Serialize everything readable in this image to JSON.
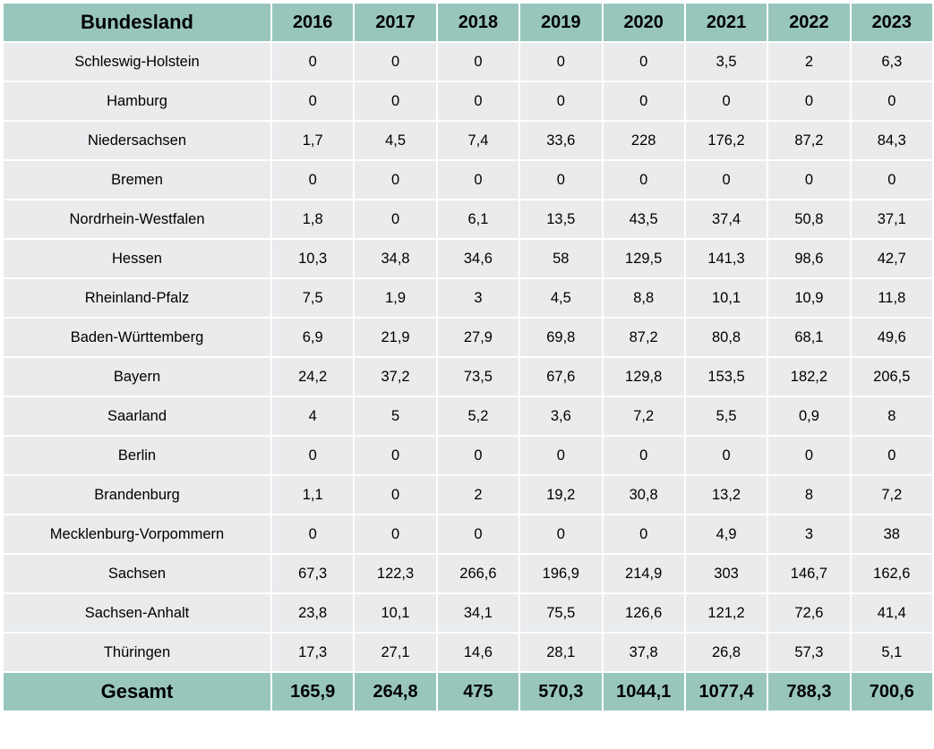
{
  "table": {
    "header": [
      "Bundesland",
      "2016",
      "2017",
      "2018",
      "2019",
      "2020",
      "2021",
      "2022",
      "2023"
    ],
    "rows": [
      {
        "name": "Schleswig-Holstein",
        "values": [
          "0",
          "0",
          "0",
          "0",
          "0",
          "3,5",
          "2",
          "6,3"
        ]
      },
      {
        "name": "Hamburg",
        "values": [
          "0",
          "0",
          "0",
          "0",
          "0",
          "0",
          "0",
          "0"
        ]
      },
      {
        "name": "Niedersachsen",
        "values": [
          "1,7",
          "4,5",
          "7,4",
          "33,6",
          "228",
          "176,2",
          "87,2",
          "84,3"
        ]
      },
      {
        "name": "Bremen",
        "values": [
          "0",
          "0",
          "0",
          "0",
          "0",
          "0",
          "0",
          "0"
        ]
      },
      {
        "name": "Nordrhein-Westfalen",
        "values": [
          "1,8",
          "0",
          "6,1",
          "13,5",
          "43,5",
          "37,4",
          "50,8",
          "37,1"
        ]
      },
      {
        "name": "Hessen",
        "values": [
          "10,3",
          "34,8",
          "34,6",
          "58",
          "129,5",
          "141,3",
          "98,6",
          "42,7"
        ]
      },
      {
        "name": "Rheinland-Pfalz",
        "values": [
          "7,5",
          "1,9",
          "3",
          "4,5",
          "8,8",
          "10,1",
          "10,9",
          "11,8"
        ]
      },
      {
        "name": "Baden-Württemberg",
        "values": [
          "6,9",
          "21,9",
          "27,9",
          "69,8",
          "87,2",
          "80,8",
          "68,1",
          "49,6"
        ]
      },
      {
        "name": "Bayern",
        "values": [
          "24,2",
          "37,2",
          "73,5",
          "67,6",
          "129,8",
          "153,5",
          "182,2",
          "206,5"
        ]
      },
      {
        "name": "Saarland",
        "values": [
          "4",
          "5",
          "5,2",
          "3,6",
          "7,2",
          "5,5",
          "0,9",
          "8"
        ]
      },
      {
        "name": "Berlin",
        "values": [
          "0",
          "0",
          "0",
          "0",
          "0",
          "0",
          "0",
          "0"
        ]
      },
      {
        "name": "Brandenburg",
        "values": [
          "1,1",
          "0",
          "2",
          "19,2",
          "30,8",
          "13,2",
          "8",
          "7,2"
        ]
      },
      {
        "name": "Mecklenburg-Vorpommern",
        "values": [
          "0",
          "0",
          "0",
          "0",
          "0",
          "4,9",
          "3",
          "38"
        ]
      },
      {
        "name": "Sachsen",
        "values": [
          "67,3",
          "122,3",
          "266,6",
          "196,9",
          "214,9",
          "303",
          "146,7",
          "162,6"
        ]
      },
      {
        "name": "Sachsen-Anhalt",
        "values": [
          "23,8",
          "10,1",
          "34,1",
          "75,5",
          "126,6",
          "121,2",
          "72,6",
          "41,4"
        ]
      },
      {
        "name": "Thüringen",
        "values": [
          "17,3",
          "27,1",
          "14,6",
          "28,1",
          "37,8",
          "26,8",
          "57,3",
          "5,1"
        ]
      }
    ],
    "total": {
      "name": "Gesamt",
      "values": [
        "165,9",
        "264,8",
        "475",
        "570,3",
        "1044,1",
        "1077,4",
        "788,3",
        "700,6"
      ]
    }
  },
  "colors": {
    "header_bg": "#98c6bd",
    "row_bg": "#e9ebed",
    "grid": "#ffffff"
  }
}
